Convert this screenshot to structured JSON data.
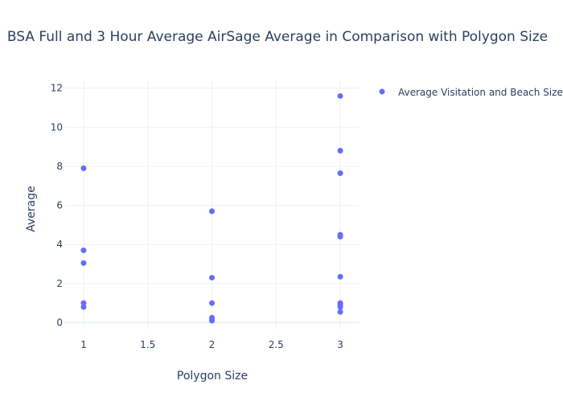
{
  "chart_data": {
    "type": "scatter",
    "title": "BSA Full and 3 Hour Average AirSage Average in Comparison with Polygon Size",
    "xlabel": "Polygon Size",
    "ylabel": "Average",
    "xlim": [
      0.85,
      3.15
    ],
    "ylim": [
      -0.35,
      12.4
    ],
    "xticks": [
      1,
      1.5,
      2,
      2.5,
      3
    ],
    "xtick_labels": [
      "1",
      "1.5",
      "2",
      "2.5",
      "3"
    ],
    "yticks": [
      0,
      2,
      4,
      6,
      8,
      10,
      12
    ],
    "ytick_labels": [
      "0",
      "2",
      "4",
      "6",
      "8",
      "10",
      "12"
    ],
    "grid": true,
    "legend_position": "top-right",
    "series": [
      {
        "name": "Average Visitation and Beach Size",
        "color": "#636efa",
        "x": [
          1,
          1,
          1,
          1,
          1,
          2,
          2,
          2,
          2,
          2,
          2,
          3,
          3,
          3,
          3,
          3,
          3,
          3,
          3,
          3,
          3
        ],
        "y": [
          7.9,
          3.7,
          3.05,
          1.0,
          0.8,
          5.7,
          2.3,
          1.0,
          0.25,
          0.15,
          0.1,
          11.6,
          8.8,
          7.65,
          4.5,
          4.4,
          2.35,
          1.0,
          0.9,
          0.8,
          0.55
        ]
      }
    ]
  }
}
